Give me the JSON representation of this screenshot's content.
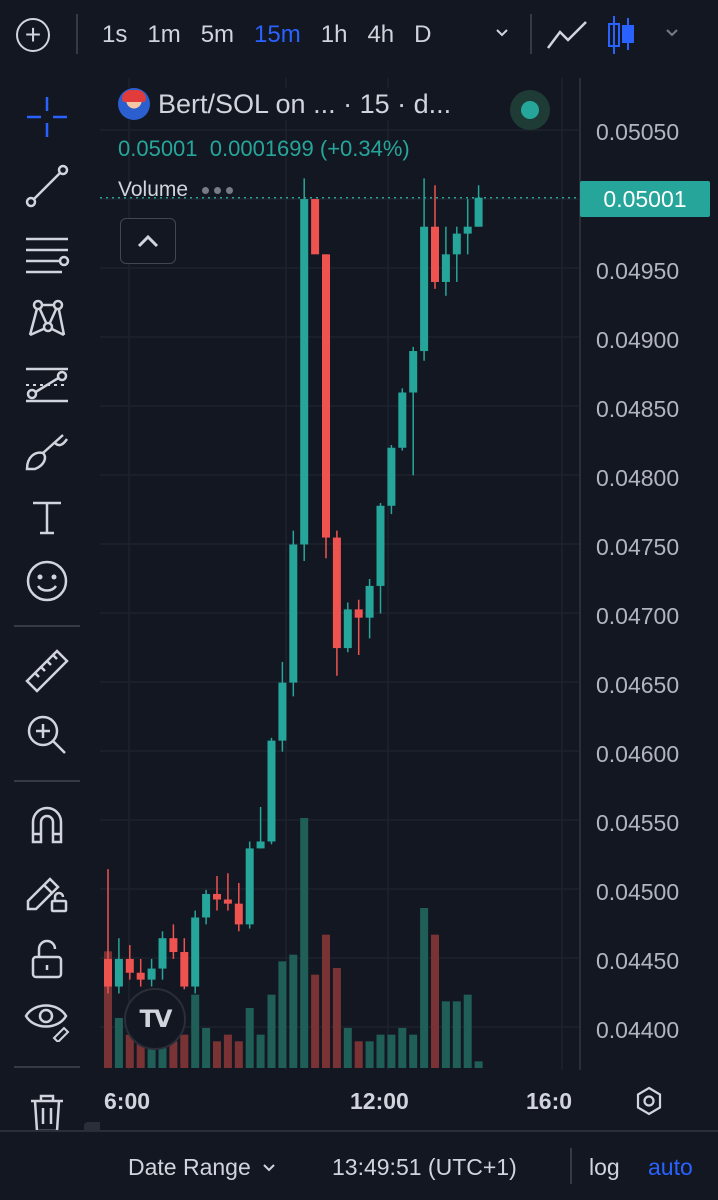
{
  "toolbar": {
    "intervals": [
      "1s",
      "1m",
      "5m",
      "15m",
      "1h",
      "4h",
      "D"
    ],
    "active_interval": "15m",
    "accent_color": "#2962ff"
  },
  "legend": {
    "symbol": "Bert/SOL on ...  · 15 · d...",
    "price": "0.05001",
    "change": "0.0001699 (+0.34%)",
    "volume_label": "Volume"
  },
  "price_axis": {
    "labels": [
      "0.05050",
      "0.04950",
      "0.04900",
      "0.04850",
      "0.04800",
      "0.04750",
      "0.04700",
      "0.04650",
      "0.04600",
      "0.04550",
      "0.04500",
      "0.04450",
      "0.04400"
    ],
    "current_price": "0.05001",
    "current_price_color": "#26a69a"
  },
  "time_axis": {
    "labels": [
      "6:00",
      "12:00",
      "16:0"
    ]
  },
  "bottom": {
    "date_range": "Date Range",
    "clock": "13:49:51 (UTC+1)",
    "log": "log",
    "auto": "auto"
  },
  "sidebar_tools": [
    "crosshair-icon",
    "trend-line-icon",
    "fib-levels-icon",
    "pattern-icon",
    "projection-icon",
    "brush-icon",
    "text-icon",
    "emoji-icon",
    "ruler-icon",
    "zoom-in-icon",
    "magnet-icon",
    "lock-drawing-icon",
    "unlock-icon",
    "eye-icon",
    "trash-icon"
  ],
  "chart_data": {
    "type": "candlestick",
    "up_color": "#26a69a",
    "down_color": "#ef5350",
    "ylim": [
      0.04375,
      0.05075
    ],
    "candles": [
      {
        "o": 0.0445,
        "h": 0.04515,
        "l": 0.04425,
        "c": 0.0443,
        "v": 0.35
      },
      {
        "o": 0.0443,
        "h": 0.04465,
        "l": 0.04425,
        "c": 0.0445,
        "v": 0.15
      },
      {
        "o": 0.0445,
        "h": 0.0446,
        "l": 0.04435,
        "c": 0.0444,
        "v": 0.1
      },
      {
        "o": 0.0444,
        "h": 0.0445,
        "l": 0.0443,
        "c": 0.04435,
        "v": 0.08
      },
      {
        "o": 0.04435,
        "h": 0.0445,
        "l": 0.0443,
        "c": 0.04443,
        "v": 0.09
      },
      {
        "o": 0.04443,
        "h": 0.0447,
        "l": 0.04435,
        "c": 0.04465,
        "v": 0.12
      },
      {
        "o": 0.04465,
        "h": 0.04475,
        "l": 0.0445,
        "c": 0.04455,
        "v": 0.08
      },
      {
        "o": 0.04455,
        "h": 0.04465,
        "l": 0.04428,
        "c": 0.0443,
        "v": 0.1
      },
      {
        "o": 0.0443,
        "h": 0.04485,
        "l": 0.04425,
        "c": 0.0448,
        "v": 0.22
      },
      {
        "o": 0.0448,
        "h": 0.045,
        "l": 0.04475,
        "c": 0.04497,
        "v": 0.12
      },
      {
        "o": 0.04497,
        "h": 0.0451,
        "l": 0.04485,
        "c": 0.04493,
        "v": 0.08
      },
      {
        "o": 0.04493,
        "h": 0.04512,
        "l": 0.04485,
        "c": 0.0449,
        "v": 0.1
      },
      {
        "o": 0.0449,
        "h": 0.04505,
        "l": 0.0447,
        "c": 0.04475,
        "v": 0.08
      },
      {
        "o": 0.04475,
        "h": 0.04535,
        "l": 0.04472,
        "c": 0.0453,
        "v": 0.18
      },
      {
        "o": 0.0453,
        "h": 0.0456,
        "l": 0.0453,
        "c": 0.04535,
        "v": 0.1
      },
      {
        "o": 0.04535,
        "h": 0.0461,
        "l": 0.04533,
        "c": 0.04608,
        "v": 0.22
      },
      {
        "o": 0.04608,
        "h": 0.04665,
        "l": 0.046,
        "c": 0.0465,
        "v": 0.32
      },
      {
        "o": 0.0465,
        "h": 0.0476,
        "l": 0.0464,
        "c": 0.0475,
        "v": 0.34
      },
      {
        "o": 0.0475,
        "h": 0.05015,
        "l": 0.04738,
        "c": 0.05,
        "v": 0.75
      },
      {
        "o": 0.05,
        "h": 0.05,
        "l": 0.04965,
        "c": 0.0496,
        "v": 0.28
      },
      {
        "o": 0.0496,
        "h": 0.0496,
        "l": 0.0474,
        "c": 0.04755,
        "v": 0.4
      },
      {
        "o": 0.04755,
        "h": 0.0476,
        "l": 0.04655,
        "c": 0.04675,
        "v": 0.3
      },
      {
        "o": 0.04675,
        "h": 0.04708,
        "l": 0.04672,
        "c": 0.04703,
        "v": 0.12
      },
      {
        "o": 0.04703,
        "h": 0.0471,
        "l": 0.0467,
        "c": 0.04697,
        "v": 0.08
      },
      {
        "o": 0.04697,
        "h": 0.04725,
        "l": 0.04682,
        "c": 0.0472,
        "v": 0.08
      },
      {
        "o": 0.0472,
        "h": 0.0478,
        "l": 0.047,
        "c": 0.04778,
        "v": 0.1
      },
      {
        "o": 0.04778,
        "h": 0.04822,
        "l": 0.04772,
        "c": 0.0482,
        "v": 0.1
      },
      {
        "o": 0.0482,
        "h": 0.04863,
        "l": 0.04818,
        "c": 0.0486,
        "v": 0.12
      },
      {
        "o": 0.0486,
        "h": 0.04893,
        "l": 0.048,
        "c": 0.0489,
        "v": 0.1
      },
      {
        "o": 0.0489,
        "h": 0.05015,
        "l": 0.04883,
        "c": 0.0498,
        "v": 0.48
      },
      {
        "o": 0.0498,
        "h": 0.0501,
        "l": 0.04935,
        "c": 0.0494,
        "v": 0.4
      },
      {
        "o": 0.0494,
        "h": 0.0498,
        "l": 0.0493,
        "c": 0.0496,
        "v": 0.2
      },
      {
        "o": 0.0496,
        "h": 0.0498,
        "l": 0.0494,
        "c": 0.04975,
        "v": 0.2
      },
      {
        "o": 0.04975,
        "h": 0.05,
        "l": 0.0496,
        "c": 0.0498,
        "v": 0.22
      },
      {
        "o": 0.0498,
        "h": 0.0501,
        "l": 0.0498,
        "c": 0.05001,
        "v": 0.02
      }
    ]
  }
}
